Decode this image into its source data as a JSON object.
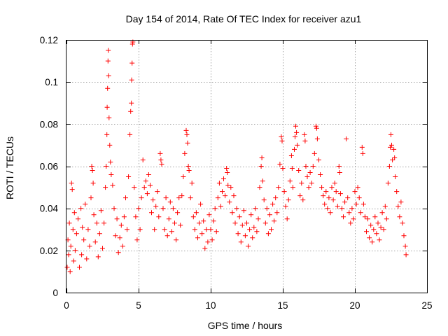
{
  "chart_data": {
    "type": "scatter",
    "title": "Day 154 of 2014, Rate Of TEC Index for receiver azu1",
    "xlabel": "GPS time / hours",
    "ylabel": "ROTI / TECUs",
    "xlim": [
      0,
      25
    ],
    "ylim": [
      0,
      0.12
    ],
    "xticks": [
      0,
      5,
      10,
      15,
      20,
      25
    ],
    "xtick_labels": [
      "0",
      "5",
      "10",
      "15",
      "20",
      "25"
    ],
    "yticks": [
      0,
      0.02,
      0.04,
      0.06,
      0.08,
      0.1,
      0.12
    ],
    "ytick_labels": [
      "0",
      "0.02",
      "0.04",
      "0.06",
      "0.08",
      "0.1",
      "0.12"
    ],
    "grid": true,
    "marker": "+",
    "color": "#ff0000",
    "series": [
      {
        "name": "ROTI azu1",
        "points": [
          [
            0.05,
            0.012
          ],
          [
            0.1,
            0.025
          ],
          [
            0.15,
            0.018
          ],
          [
            0.2,
            0.033
          ],
          [
            0.25,
            0.01
          ],
          [
            0.3,
            0.022
          ],
          [
            0.35,
            0.052
          ],
          [
            0.4,
            0.049
          ],
          [
            0.45,
            0.03
          ],
          [
            0.5,
            0.015
          ],
          [
            0.55,
            0.038
          ],
          [
            0.6,
            0.02
          ],
          [
            0.7,
            0.028
          ],
          [
            0.8,
            0.035
          ],
          [
            0.9,
            0.012
          ],
          [
            1.0,
            0.04
          ],
          [
            1.05,
            0.018
          ],
          [
            1.1,
            0.031
          ],
          [
            1.2,
            0.025
          ],
          [
            1.3,
            0.042
          ],
          [
            1.4,
            0.016
          ],
          [
            1.5,
            0.03
          ],
          [
            1.6,
            0.022
          ],
          [
            1.7,
            0.045
          ],
          [
            1.75,
            0.06
          ],
          [
            1.8,
            0.058
          ],
          [
            1.85,
            0.052
          ],
          [
            1.9,
            0.037
          ],
          [
            2.0,
            0.024
          ],
          [
            2.1,
            0.033
          ],
          [
            2.2,
            0.017
          ],
          [
            2.3,
            0.028
          ],
          [
            2.4,
            0.039
          ],
          [
            2.5,
            0.021
          ],
          [
            2.6,
            0.033
          ],
          [
            2.7,
            0.05
          ],
          [
            2.75,
            0.06
          ],
          [
            2.8,
            0.075
          ],
          [
            2.82,
            0.088
          ],
          [
            2.85,
            0.097
          ],
          [
            2.88,
            0.11
          ],
          [
            2.9,
            0.115
          ],
          [
            2.92,
            0.103
          ],
          [
            2.95,
            0.083
          ],
          [
            3.0,
            0.07
          ],
          [
            3.05,
            0.062
          ],
          [
            3.1,
            0.056
          ],
          [
            3.2,
            0.051
          ],
          [
            3.3,
            0.04
          ],
          [
            3.4,
            0.027
          ],
          [
            3.5,
            0.035
          ],
          [
            3.6,
            0.019
          ],
          [
            3.7,
            0.026
          ],
          [
            3.8,
            0.032
          ],
          [
            3.9,
            0.022
          ],
          [
            4.0,
            0.036
          ],
          [
            4.1,
            0.045
          ],
          [
            4.2,
            0.03
          ],
          [
            4.3,
            0.055
          ],
          [
            4.4,
            0.075
          ],
          [
            4.45,
            0.086
          ],
          [
            4.5,
            0.09
          ],
          [
            4.52,
            0.101
          ],
          [
            4.55,
            0.109
          ],
          [
            4.58,
            0.118
          ],
          [
            4.6,
            0.119
          ],
          [
            4.7,
            0.05
          ],
          [
            4.8,
            0.036
          ],
          [
            4.9,
            0.025
          ],
          [
            5.0,
            0.04
          ],
          [
            5.1,
            0.03
          ],
          [
            5.2,
            0.045
          ],
          [
            5.3,
            0.063
          ],
          [
            5.4,
            0.05
          ],
          [
            5.5,
            0.053
          ],
          [
            5.6,
            0.047
          ],
          [
            5.7,
            0.056
          ],
          [
            5.8,
            0.051
          ],
          [
            5.9,
            0.038
          ],
          [
            6.0,
            0.044
          ],
          [
            6.1,
            0.03
          ],
          [
            6.2,
            0.041
          ],
          [
            6.3,
            0.048
          ],
          [
            6.4,
            0.036
          ],
          [
            6.5,
            0.066
          ],
          [
            6.55,
            0.063
          ],
          [
            6.6,
            0.061
          ],
          [
            6.7,
            0.04
          ],
          [
            6.8,
            0.03
          ],
          [
            6.9,
            0.045
          ],
          [
            7.0,
            0.027
          ],
          [
            7.1,
            0.035
          ],
          [
            7.2,
            0.043
          ],
          [
            7.3,
            0.029
          ],
          [
            7.4,
            0.04
          ],
          [
            7.5,
            0.033
          ],
          [
            7.6,
            0.025
          ],
          [
            7.7,
            0.038
          ],
          [
            7.8,
            0.045
          ],
          [
            7.9,
            0.032
          ],
          [
            8.0,
            0.046
          ],
          [
            8.1,
            0.055
          ],
          [
            8.2,
            0.066
          ],
          [
            8.3,
            0.077
          ],
          [
            8.35,
            0.075
          ],
          [
            8.4,
            0.071
          ],
          [
            8.45,
            0.06
          ],
          [
            8.5,
            0.058
          ],
          [
            8.6,
            0.045
          ],
          [
            8.7,
            0.052
          ],
          [
            8.8,
            0.036
          ],
          [
            8.9,
            0.03
          ],
          [
            9.0,
            0.038
          ],
          [
            9.1,
            0.026
          ],
          [
            9.2,
            0.033
          ],
          [
            9.3,
            0.042
          ],
          [
            9.4,
            0.028
          ],
          [
            9.5,
            0.034
          ],
          [
            9.6,
            0.021
          ],
          [
            9.7,
            0.03
          ],
          [
            9.8,
            0.024
          ],
          [
            9.9,
            0.037
          ],
          [
            10.0,
            0.03
          ],
          [
            10.1,
            0.025
          ],
          [
            10.2,
            0.034
          ],
          [
            10.3,
            0.04
          ],
          [
            10.4,
            0.029
          ],
          [
            10.5,
            0.045
          ],
          [
            10.6,
            0.052
          ],
          [
            10.7,
            0.041
          ],
          [
            10.8,
            0.048
          ],
          [
            10.9,
            0.054
          ],
          [
            11.0,
            0.046
          ],
          [
            11.1,
            0.059
          ],
          [
            11.15,
            0.057
          ],
          [
            11.2,
            0.051
          ],
          [
            11.3,
            0.043
          ],
          [
            11.4,
            0.05
          ],
          [
            11.5,
            0.038
          ],
          [
            11.6,
            0.046
          ],
          [
            11.7,
            0.033
          ],
          [
            11.8,
            0.04
          ],
          [
            11.9,
            0.028
          ],
          [
            12.0,
            0.036
          ],
          [
            12.1,
            0.024
          ],
          [
            12.2,
            0.032
          ],
          [
            12.3,
            0.039
          ],
          [
            12.4,
            0.027
          ],
          [
            12.5,
            0.033
          ],
          [
            12.6,
            0.022
          ],
          [
            12.7,
            0.03
          ],
          [
            12.8,
            0.037
          ],
          [
            12.9,
            0.026
          ],
          [
            13.0,
            0.031
          ],
          [
            13.1,
            0.04
          ],
          [
            13.2,
            0.029
          ],
          [
            13.3,
            0.035
          ],
          [
            13.4,
            0.05
          ],
          [
            13.5,
            0.06
          ],
          [
            13.55,
            0.064
          ],
          [
            13.6,
            0.053
          ],
          [
            13.7,
            0.044
          ],
          [
            13.8,
            0.033
          ],
          [
            13.9,
            0.04
          ],
          [
            14.0,
            0.028
          ],
          [
            14.1,
            0.037
          ],
          [
            14.2,
            0.03
          ],
          [
            14.3,
            0.042
          ],
          [
            14.4,
            0.034
          ],
          [
            14.5,
            0.045
          ],
          [
            14.6,
            0.038
          ],
          [
            14.7,
            0.05
          ],
          [
            14.8,
            0.061
          ],
          [
            14.9,
            0.074
          ],
          [
            14.95,
            0.072
          ],
          [
            15.0,
            0.059
          ],
          [
            15.1,
            0.048
          ],
          [
            15.2,
            0.041
          ],
          [
            15.3,
            0.035
          ],
          [
            15.4,
            0.044
          ],
          [
            15.5,
            0.053
          ],
          [
            15.6,
            0.065
          ],
          [
            15.65,
            0.059
          ],
          [
            15.7,
            0.05
          ],
          [
            15.8,
            0.068
          ],
          [
            15.85,
            0.074
          ],
          [
            15.9,
            0.079
          ],
          [
            15.95,
            0.076
          ],
          [
            16.0,
            0.07
          ],
          [
            16.1,
            0.058
          ],
          [
            16.2,
            0.046
          ],
          [
            16.3,
            0.052
          ],
          [
            16.4,
            0.044
          ],
          [
            16.5,
            0.075
          ],
          [
            16.55,
            0.072
          ],
          [
            16.6,
            0.06
          ],
          [
            16.7,
            0.055
          ],
          [
            16.8,
            0.05
          ],
          [
            16.9,
            0.057
          ],
          [
            17.0,
            0.052
          ],
          [
            17.1,
            0.06
          ],
          [
            17.2,
            0.066
          ],
          [
            17.3,
            0.079
          ],
          [
            17.35,
            0.078
          ],
          [
            17.4,
            0.073
          ],
          [
            17.5,
            0.063
          ],
          [
            17.6,
            0.056
          ],
          [
            17.7,
            0.05
          ],
          [
            17.8,
            0.046
          ],
          [
            17.9,
            0.042
          ],
          [
            18.0,
            0.048
          ],
          [
            18.1,
            0.04
          ],
          [
            18.2,
            0.045
          ],
          [
            18.3,
            0.038
          ],
          [
            18.4,
            0.05
          ],
          [
            18.5,
            0.044
          ],
          [
            18.6,
            0.052
          ],
          [
            18.7,
            0.048
          ],
          [
            18.8,
            0.041
          ],
          [
            18.9,
            0.06
          ],
          [
            18.95,
            0.057
          ],
          [
            19.0,
            0.047
          ],
          [
            19.1,
            0.04
          ],
          [
            19.2,
            0.036
          ],
          [
            19.3,
            0.043
          ],
          [
            19.4,
            0.073
          ],
          [
            19.5,
            0.045
          ],
          [
            19.6,
            0.038
          ],
          [
            19.7,
            0.033
          ],
          [
            19.8,
            0.04
          ],
          [
            19.9,
            0.035
          ],
          [
            20.0,
            0.048
          ],
          [
            20.1,
            0.042
          ],
          [
            20.2,
            0.05
          ],
          [
            20.3,
            0.045
          ],
          [
            20.4,
            0.038
          ],
          [
            20.5,
            0.069
          ],
          [
            20.55,
            0.066
          ],
          [
            20.6,
            0.042
          ],
          [
            20.7,
            0.036
          ],
          [
            20.8,
            0.029
          ],
          [
            20.9,
            0.035
          ],
          [
            21.0,
            0.026
          ],
          [
            21.1,
            0.032
          ],
          [
            21.2,
            0.024
          ],
          [
            21.3,
            0.03
          ],
          [
            21.4,
            0.036
          ],
          [
            21.5,
            0.028
          ],
          [
            21.6,
            0.033
          ],
          [
            21.7,
            0.025
          ],
          [
            21.8,
            0.031
          ],
          [
            21.9,
            0.038
          ],
          [
            22.0,
            0.03
          ],
          [
            22.1,
            0.041
          ],
          [
            22.2,
            0.035
          ],
          [
            22.3,
            0.052
          ],
          [
            22.4,
            0.06
          ],
          [
            22.45,
            0.069
          ],
          [
            22.5,
            0.075
          ],
          [
            22.55,
            0.07
          ],
          [
            22.6,
            0.063
          ],
          [
            22.7,
            0.068
          ],
          [
            22.75,
            0.064
          ],
          [
            22.8,
            0.055
          ],
          [
            22.9,
            0.048
          ],
          [
            23.0,
            0.041
          ],
          [
            23.1,
            0.036
          ],
          [
            23.2,
            0.043
          ],
          [
            23.3,
            0.033
          ],
          [
            23.4,
            0.027
          ],
          [
            23.5,
            0.022
          ],
          [
            23.55,
            0.018
          ]
        ]
      }
    ]
  }
}
